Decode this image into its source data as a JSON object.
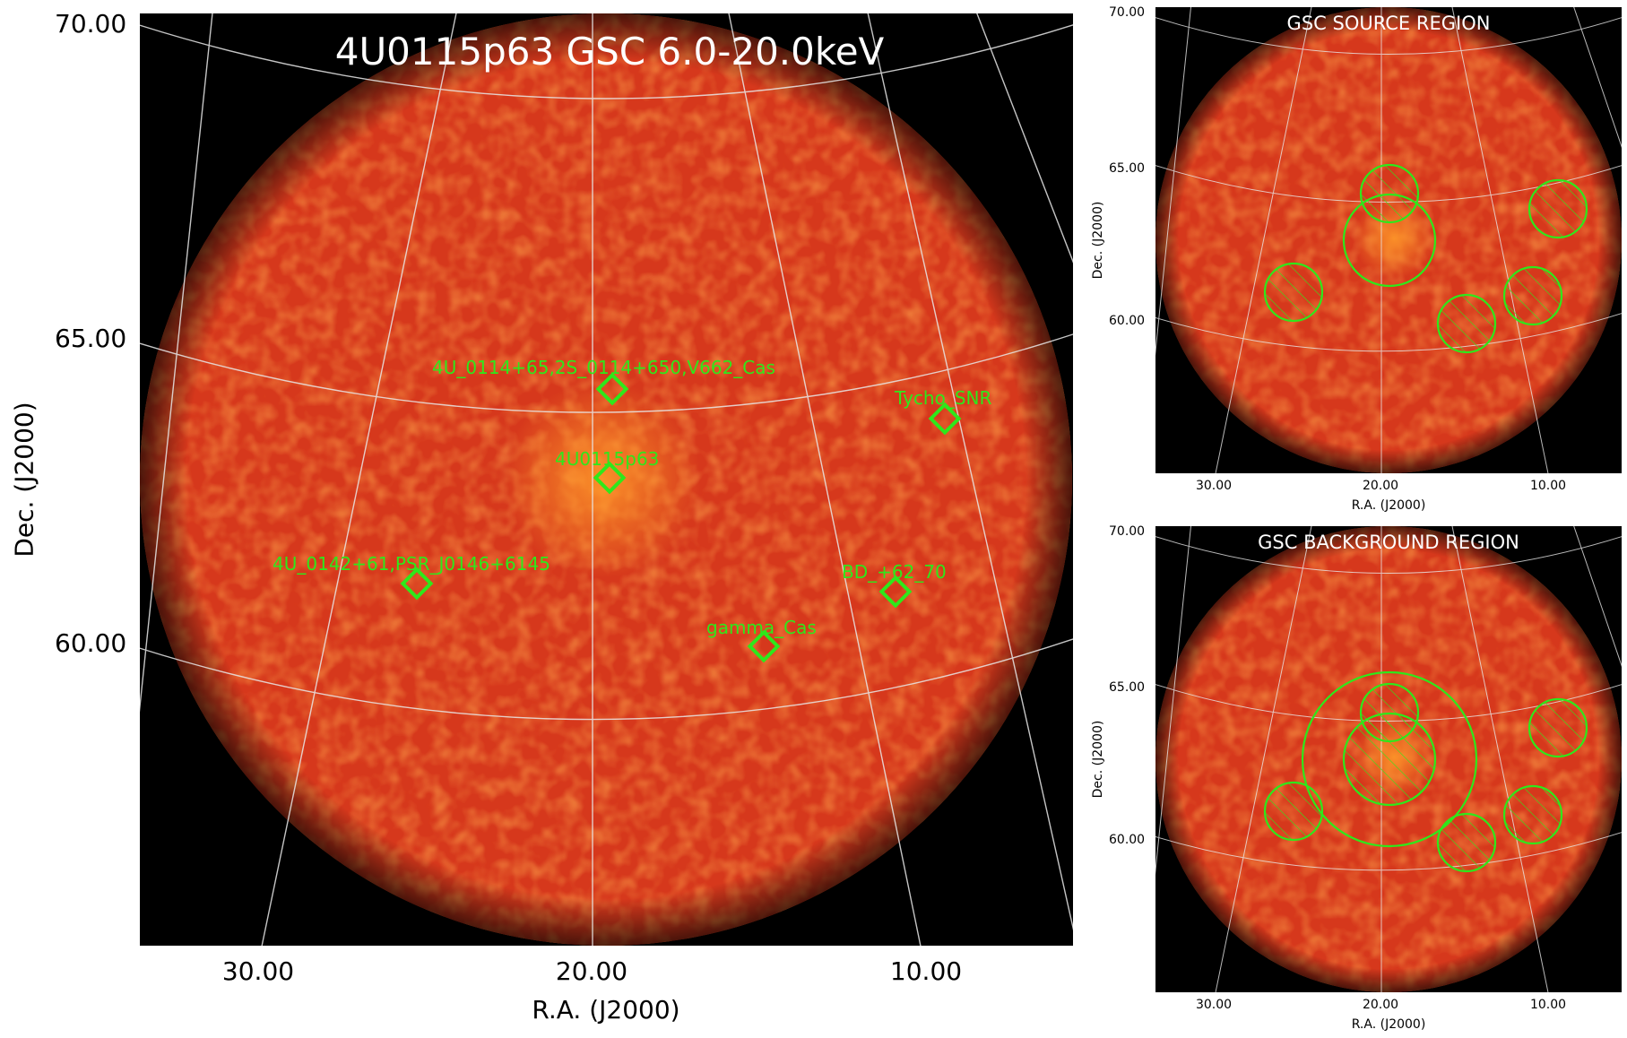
{
  "main": {
    "title": "4U0115p63 GSC 6.0-20.0keV",
    "yticks": [
      "70.00",
      "65.00",
      "60.00"
    ],
    "xticks": [
      "30.00",
      "20.00",
      "10.00"
    ],
    "xlabel": "R.A. (J2000)",
    "ylabel": "Dec. (J2000)",
    "sources": [
      {
        "label": "4U_0114+65,2S_0114+650,V662_Cas"
      },
      {
        "label": "Tycho_SNR"
      },
      {
        "label": "4U0115p63"
      },
      {
        "label": "4U_0142+61,PSR_J0146+6145"
      },
      {
        "label": "BD_+62_70"
      },
      {
        "label": "gamma_Cas"
      }
    ]
  },
  "source_panel": {
    "title": "GSC SOURCE REGION",
    "yticks": [
      "70.00",
      "65.00",
      "60.00"
    ],
    "xticks": [
      "30.00",
      "20.00",
      "10.00"
    ],
    "xlabel": "R.A. (J2000)",
    "ylabel": "Dec. (J2000)"
  },
  "background_panel": {
    "title": "GSC BACKGROUND REGION",
    "yticks": [
      "70.00",
      "65.00",
      "60.00"
    ],
    "xticks": [
      "30.00",
      "20.00",
      "10.00"
    ],
    "xlabel": "R.A. (J2000)",
    "ylabel": "Dec. (J2000)"
  },
  "colors": {
    "map_fill": "#d6381c",
    "map_hot": "#ff8a1f",
    "marker": "#2ee81b",
    "grid": "#e8e8e8",
    "sky": "#000000"
  }
}
